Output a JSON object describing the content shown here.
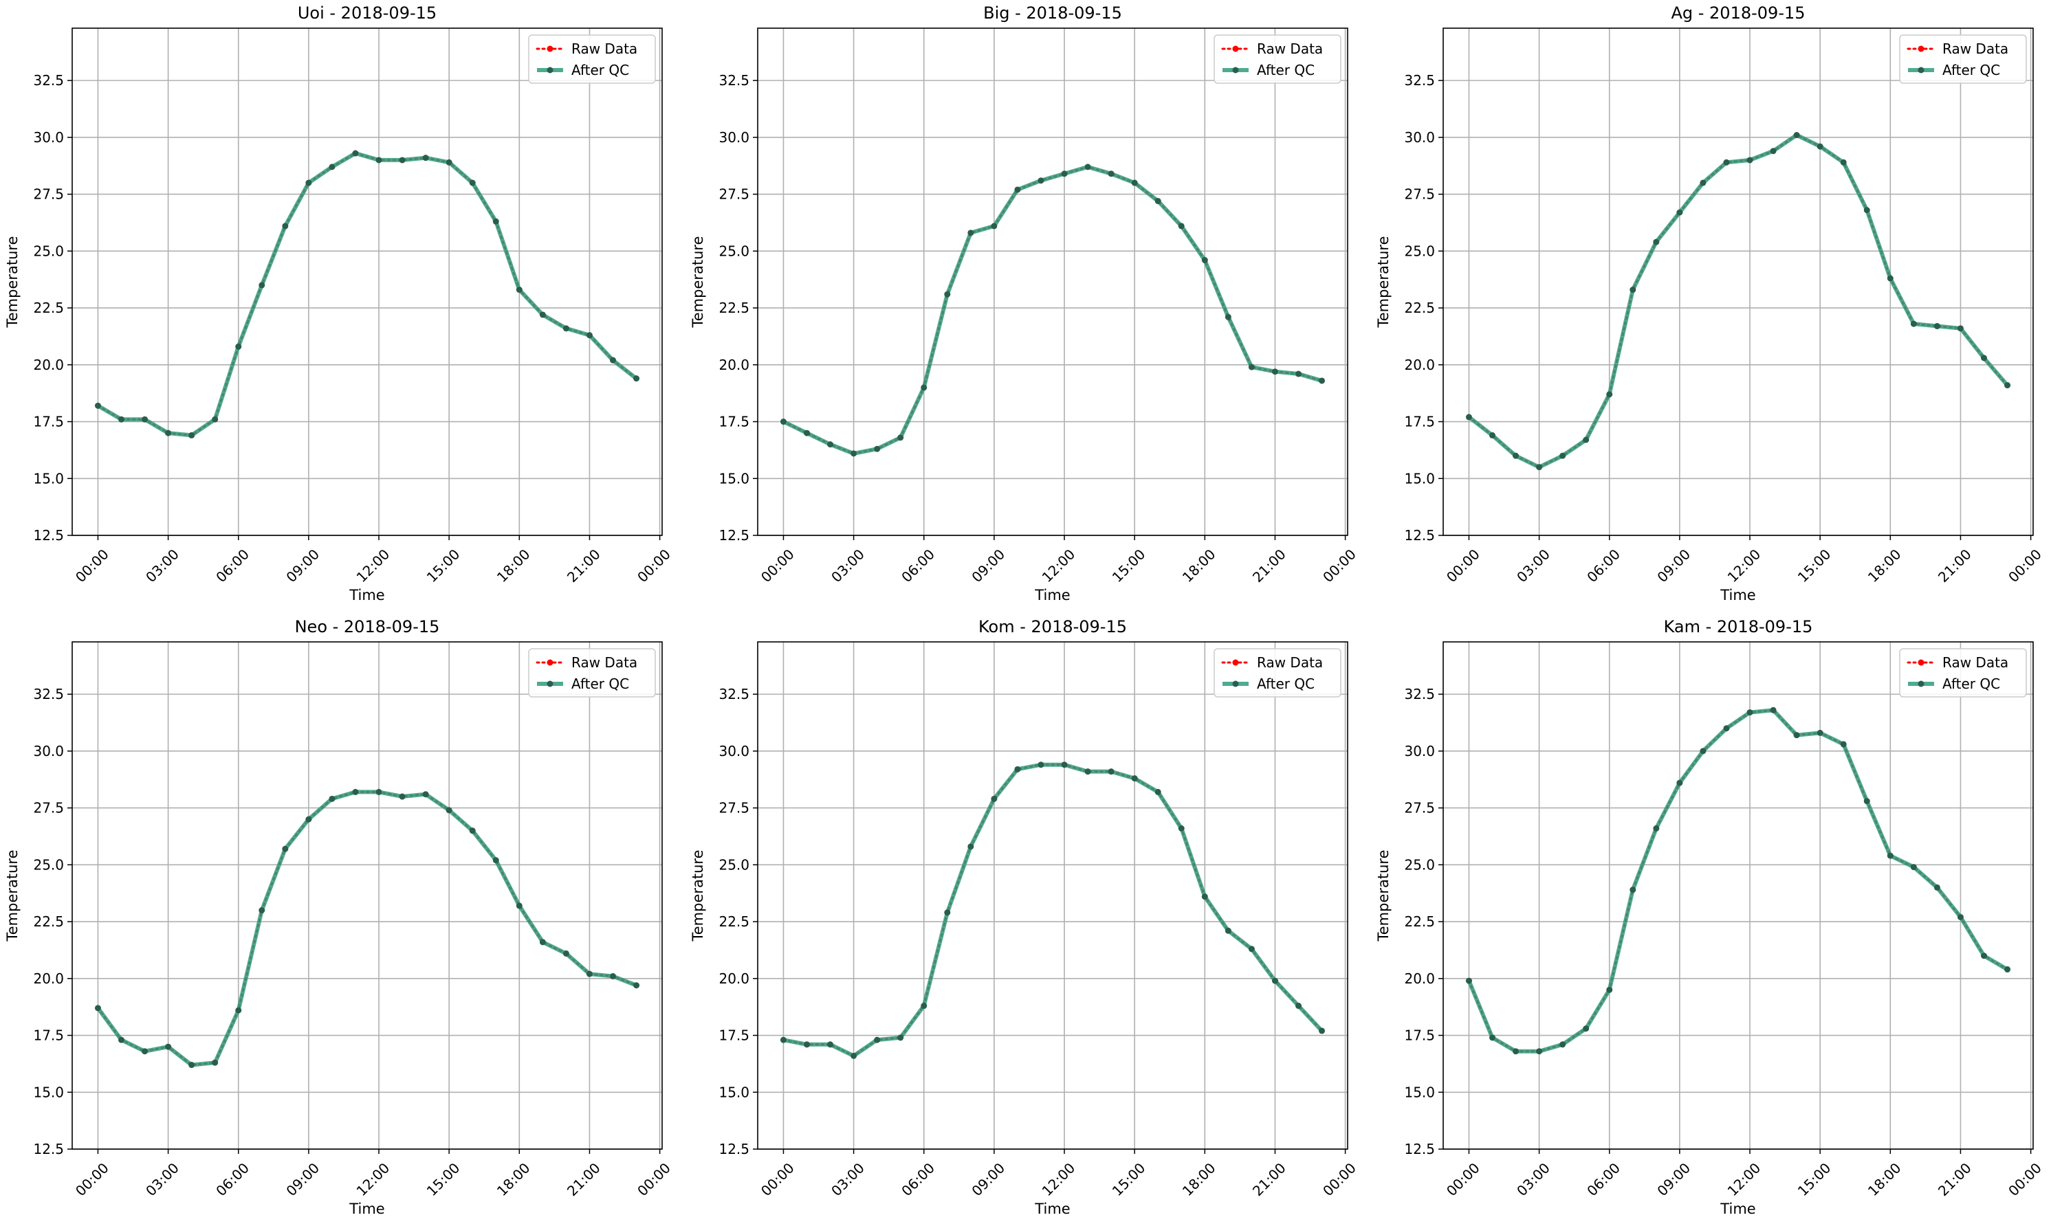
{
  "figure": {
    "x_tick_labels": [
      "00:00",
      "03:00",
      "06:00",
      "09:00",
      "12:00",
      "15:00",
      "18:00",
      "21:00",
      "00:00"
    ],
    "y_tick_labels": [
      "12.5",
      "15.0",
      "17.5",
      "20.0",
      "22.5",
      "25.0",
      "27.5",
      "30.0",
      "32.5"
    ],
    "colors": {
      "raw": "#ff0000",
      "qc": "#2e9c7c",
      "grid": "#b0b0b0"
    }
  },
  "chart_data": [
    {
      "type": "line",
      "title": "Uoi - 2018-09-15",
      "xlabel": "Time",
      "ylabel": "Temperature",
      "ylim": [
        12.5,
        34.8
      ],
      "xlim_hours": [
        -1.1,
        24.1
      ],
      "grid": true,
      "legend": "top-right",
      "x_hours": [
        0,
        1,
        2,
        3,
        4,
        5,
        6,
        7,
        8,
        9,
        10,
        11,
        12,
        13,
        14,
        15,
        16,
        17,
        18,
        19,
        20,
        21,
        22,
        23
      ],
      "series": [
        {
          "name": "Raw Data",
          "values": [
            18.2,
            17.6,
            17.6,
            17.0,
            16.9,
            17.6,
            20.8,
            23.5,
            26.1,
            28.0,
            28.7,
            29.3,
            29.0,
            29.0,
            29.1,
            28.9,
            28.0,
            26.3,
            23.3,
            22.2,
            21.6,
            21.3,
            20.2,
            19.4
          ]
        },
        {
          "name": "After QC",
          "values": [
            18.2,
            17.6,
            17.6,
            17.0,
            16.9,
            17.6,
            20.8,
            23.5,
            26.1,
            28.0,
            28.7,
            29.3,
            29.0,
            29.0,
            29.1,
            28.9,
            28.0,
            26.3,
            23.3,
            22.2,
            21.6,
            21.3,
            20.2,
            19.4
          ]
        }
      ]
    },
    {
      "type": "line",
      "title": "Big - 2018-09-15",
      "xlabel": "Time",
      "ylabel": "Temperature",
      "ylim": [
        12.5,
        34.8
      ],
      "xlim_hours": [
        -1.1,
        24.1
      ],
      "grid": true,
      "legend": "top-right",
      "x_hours": [
        0,
        1,
        2,
        3,
        4,
        5,
        6,
        7,
        8,
        9,
        10,
        11,
        12,
        13,
        14,
        15,
        16,
        17,
        18,
        19,
        20,
        21,
        22,
        23
      ],
      "series": [
        {
          "name": "Raw Data",
          "values": [
            17.5,
            17.0,
            16.5,
            16.1,
            16.3,
            16.8,
            19.0,
            23.1,
            25.8,
            26.1,
            27.7,
            28.1,
            28.4,
            28.7,
            28.4,
            28.0,
            27.2,
            26.1,
            24.6,
            22.1,
            19.9,
            19.7,
            19.6,
            19.3
          ]
        },
        {
          "name": "After QC",
          "values": [
            17.5,
            17.0,
            16.5,
            16.1,
            16.3,
            16.8,
            19.0,
            23.1,
            25.8,
            26.1,
            27.7,
            28.1,
            28.4,
            28.7,
            28.4,
            28.0,
            27.2,
            26.1,
            24.6,
            22.1,
            19.9,
            19.7,
            19.6,
            19.3
          ]
        }
      ]
    },
    {
      "type": "line",
      "title": "Ag - 2018-09-15",
      "xlabel": "Time",
      "ylabel": "Temperature",
      "ylim": [
        12.5,
        34.8
      ],
      "xlim_hours": [
        -1.1,
        24.1
      ],
      "grid": true,
      "legend": "top-right",
      "x_hours": [
        0,
        1,
        2,
        3,
        4,
        5,
        6,
        7,
        8,
        9,
        10,
        11,
        12,
        13,
        14,
        15,
        16,
        17,
        18,
        19,
        20,
        21,
        22,
        23
      ],
      "series": [
        {
          "name": "Raw Data",
          "values": [
            17.7,
            16.9,
            16.0,
            15.5,
            16.0,
            16.7,
            18.7,
            23.3,
            25.4,
            26.7,
            28.0,
            28.9,
            29.0,
            29.4,
            30.1,
            29.6,
            28.9,
            26.8,
            23.8,
            21.8,
            21.7,
            21.6,
            20.3,
            19.1
          ]
        },
        {
          "name": "After QC",
          "values": [
            17.7,
            16.9,
            16.0,
            15.5,
            16.0,
            16.7,
            18.7,
            23.3,
            25.4,
            26.7,
            28.0,
            28.9,
            29.0,
            29.4,
            30.1,
            29.6,
            28.9,
            26.8,
            23.8,
            21.8,
            21.7,
            21.6,
            20.3,
            19.1
          ]
        }
      ]
    },
    {
      "type": "line",
      "title": "Neo - 2018-09-15",
      "xlabel": "Time",
      "ylabel": "Temperature",
      "ylim": [
        12.5,
        34.8
      ],
      "xlim_hours": [
        -1.1,
        24.1
      ],
      "grid": true,
      "legend": "top-right",
      "x_hours": [
        0,
        1,
        2,
        3,
        4,
        5,
        6,
        7,
        8,
        9,
        10,
        11,
        12,
        13,
        14,
        15,
        16,
        17,
        18,
        19,
        20,
        21,
        22,
        23
      ],
      "series": [
        {
          "name": "Raw Data",
          "values": [
            18.7,
            17.3,
            16.8,
            17.0,
            16.2,
            16.3,
            18.6,
            23.0,
            25.7,
            27.0,
            27.9,
            28.2,
            28.2,
            28.0,
            28.1,
            27.4,
            26.5,
            25.2,
            23.2,
            21.6,
            21.1,
            20.2,
            20.1,
            19.7
          ]
        },
        {
          "name": "After QC",
          "values": [
            18.7,
            17.3,
            16.8,
            17.0,
            16.2,
            16.3,
            18.6,
            23.0,
            25.7,
            27.0,
            27.9,
            28.2,
            28.2,
            28.0,
            28.1,
            27.4,
            26.5,
            25.2,
            23.2,
            21.6,
            21.1,
            20.2,
            20.1,
            19.7
          ]
        }
      ]
    },
    {
      "type": "line",
      "title": "Kom - 2018-09-15",
      "xlabel": "Time",
      "ylabel": "Temperature",
      "ylim": [
        12.5,
        34.8
      ],
      "xlim_hours": [
        -1.1,
        24.1
      ],
      "grid": true,
      "legend": "top-right",
      "x_hours": [
        0,
        1,
        2,
        3,
        4,
        5,
        6,
        7,
        8,
        9,
        10,
        11,
        12,
        13,
        14,
        15,
        16,
        17,
        18,
        19,
        20,
        21,
        22,
        23
      ],
      "series": [
        {
          "name": "Raw Data",
          "values": [
            17.3,
            17.1,
            17.1,
            16.6,
            17.3,
            17.4,
            18.8,
            22.9,
            25.8,
            27.9,
            29.2,
            29.4,
            29.4,
            29.1,
            29.1,
            28.8,
            28.2,
            26.6,
            23.6,
            22.1,
            21.3,
            19.9,
            18.8,
            17.7
          ]
        },
        {
          "name": "After QC",
          "values": [
            17.3,
            17.1,
            17.1,
            16.6,
            17.3,
            17.4,
            18.8,
            22.9,
            25.8,
            27.9,
            29.2,
            29.4,
            29.4,
            29.1,
            29.1,
            28.8,
            28.2,
            26.6,
            23.6,
            22.1,
            21.3,
            19.9,
            18.8,
            17.7
          ]
        }
      ]
    },
    {
      "type": "line",
      "title": "Kam - 2018-09-15",
      "xlabel": "Time",
      "ylabel": "Temperature",
      "ylim": [
        12.5,
        34.8
      ],
      "xlim_hours": [
        -1.1,
        24.1
      ],
      "grid": true,
      "legend": "top-right",
      "x_hours": [
        0,
        1,
        2,
        3,
        4,
        5,
        6,
        7,
        8,
        9,
        10,
        11,
        12,
        13,
        14,
        15,
        16,
        17,
        18,
        19,
        20,
        21,
        22,
        23
      ],
      "series": [
        {
          "name": "Raw Data",
          "values": [
            19.9,
            17.4,
            16.8,
            16.8,
            17.1,
            17.8,
            19.5,
            23.9,
            26.6,
            28.6,
            30.0,
            31.0,
            31.7,
            31.8,
            30.7,
            30.8,
            30.3,
            27.8,
            25.4,
            24.9,
            24.0,
            22.7,
            21.0,
            20.4
          ]
        },
        {
          "name": "After QC",
          "values": [
            19.9,
            17.4,
            16.8,
            16.8,
            17.1,
            17.8,
            19.5,
            23.9,
            26.6,
            28.6,
            30.0,
            31.0,
            31.7,
            31.8,
            30.7,
            30.8,
            30.3,
            27.8,
            25.4,
            24.9,
            24.0,
            22.7,
            21.0,
            20.4
          ]
        }
      ]
    }
  ]
}
